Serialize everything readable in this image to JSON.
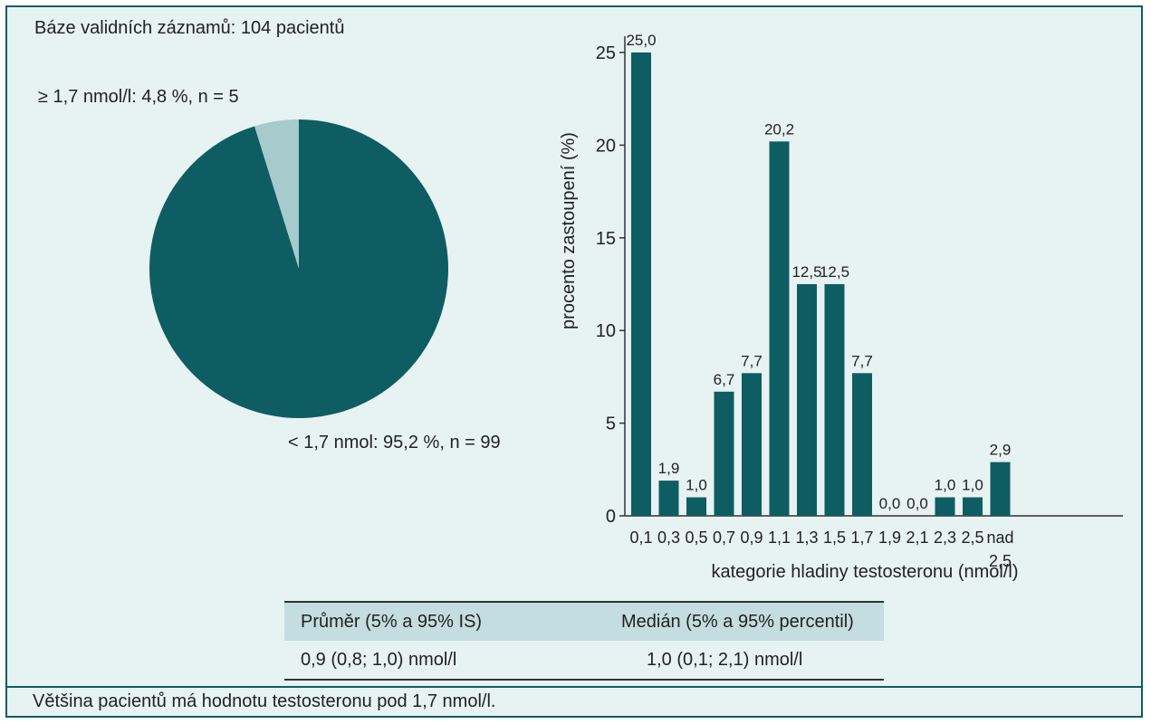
{
  "base_text": "Báze validních záznamů: 104 pacientů",
  "pie": {
    "label_high": "≥ 1,7 nmol/l: 4,8 %, n = 5",
    "label_low": "< 1,7 nmol: 95,2 %, n = 99"
  },
  "colors": {
    "bar": "#0e5d63",
    "pie_main": "#0e5d63",
    "pie_minor": "#a7cacd",
    "background": "#e7f2f3"
  },
  "chart_data": [
    {
      "type": "pie",
      "slices": [
        {
          "label": "≥ 1,7 nmol/l: 4,8 %, n = 5",
          "value": 4.8,
          "n": 5
        },
        {
          "label": "< 1,7 nmol: 95,2 %, n = 99",
          "value": 95.2,
          "n": 99
        }
      ],
      "title": ""
    },
    {
      "type": "bar",
      "categories": [
        "0,1",
        "0,3",
        "0,5",
        "0,7",
        "0,9",
        "1,1",
        "1,3",
        "1,5",
        "1,7",
        "1,9",
        "2,1",
        "2,3",
        "2,5",
        "nad 2,5"
      ],
      "values": [
        25.0,
        1.9,
        1.0,
        6.7,
        7.7,
        20.2,
        12.5,
        12.5,
        7.7,
        0.0,
        0.0,
        1.0,
        1.0,
        2.9
      ],
      "value_labels": [
        "25,0",
        "1,9",
        "1,0",
        "6,7",
        "7,7",
        "20,2",
        "12,5",
        "12,5",
        "7,7",
        "0,0",
        "0,0",
        "1,0",
        "1,0",
        "2,9"
      ],
      "xlabel": "kategorie hladiny testosteronu (nmol/l)",
      "ylabel": "procento zastoupení (%)",
      "ylim": [
        0,
        25
      ],
      "yticks": [
        0,
        5,
        10,
        15,
        20,
        25
      ],
      "grid": false
    }
  ],
  "stats_table": {
    "headers": [
      "Průměr (5% a 95% IS)",
      "Medián (5% a 95% percentil)"
    ],
    "row": [
      "0,9 (0,8; 1,0) nmol/l",
      "1,0 (0,1; 2,1) nmol/l"
    ]
  },
  "footer_text": "Většina pacientů má hodnotu testosteronu pod 1,7 nmol/l."
}
